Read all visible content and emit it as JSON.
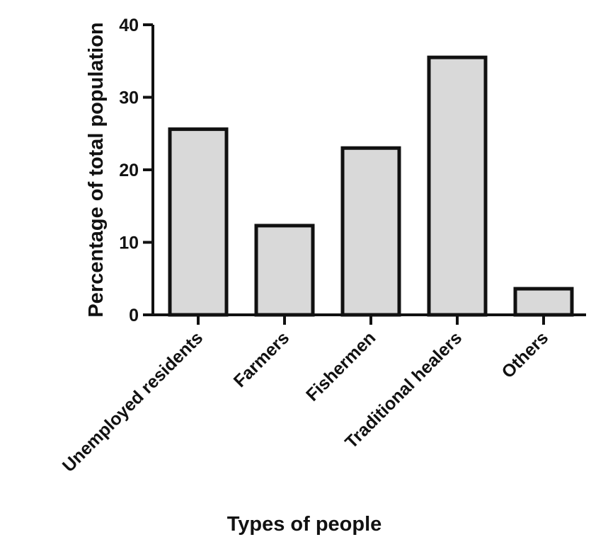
{
  "chart_data": {
    "type": "bar",
    "categories": [
      "Unemployed residents",
      "Farmers",
      "Fishermen",
      "Traditional healers",
      "Others"
    ],
    "values": [
      25.6,
      12.3,
      23.0,
      35.5,
      3.6
    ],
    "xlabel": "Types of people",
    "ylabel": "Percentage of total population",
    "ylim": [
      0,
      40
    ],
    "yticks": [
      0,
      10,
      20,
      30,
      40
    ],
    "ytick_labels": [
      "0",
      "10",
      "20",
      "30",
      "40"
    ],
    "grid": false,
    "legend": "none",
    "colors": {
      "bar_fill": "#d9d9d9",
      "bar_stroke": "#111111"
    }
  }
}
